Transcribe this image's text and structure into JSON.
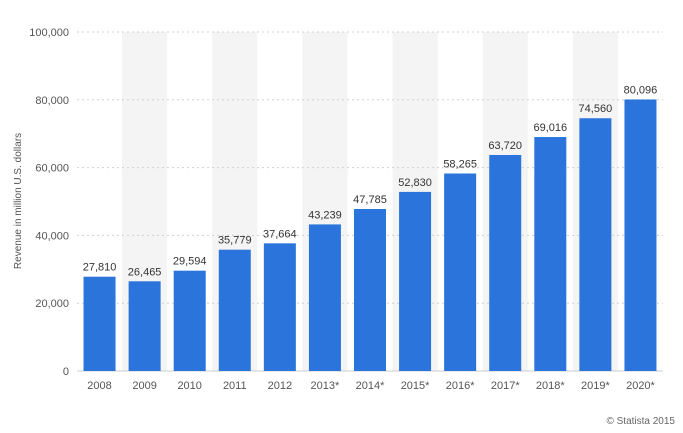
{
  "chart_data": {
    "type": "bar",
    "title": "",
    "xlabel": "",
    "ylabel": "Revenue in million U.S. dollars",
    "categories": [
      "2008",
      "2009",
      "2010",
      "2011",
      "2012",
      "2013*",
      "2014*",
      "2015*",
      "2016*",
      "2017*",
      "2018*",
      "2019*",
      "2020*"
    ],
    "values": [
      27810,
      26465,
      29594,
      35779,
      37664,
      43239,
      47785,
      52830,
      58265,
      63720,
      69016,
      74560,
      80096
    ],
    "data_labels": [
      "27,810",
      "26,465",
      "29,594",
      "35,779",
      "37,664",
      "43,239",
      "47,785",
      "52,830",
      "58,265",
      "63,720",
      "69,016",
      "74,560",
      "80,096"
    ],
    "ylim": [
      0,
      100000
    ],
    "yticks": [
      0,
      20000,
      40000,
      60000,
      80000,
      100000
    ],
    "ytick_labels": [
      "0",
      "20,000",
      "40,000",
      "60,000",
      "80,000",
      "100,000"
    ],
    "grid": true,
    "legend": "none",
    "bar_color": "#2a74db",
    "alt_band_color": "#f4f4f4"
  },
  "credit": "© Statista 2015"
}
